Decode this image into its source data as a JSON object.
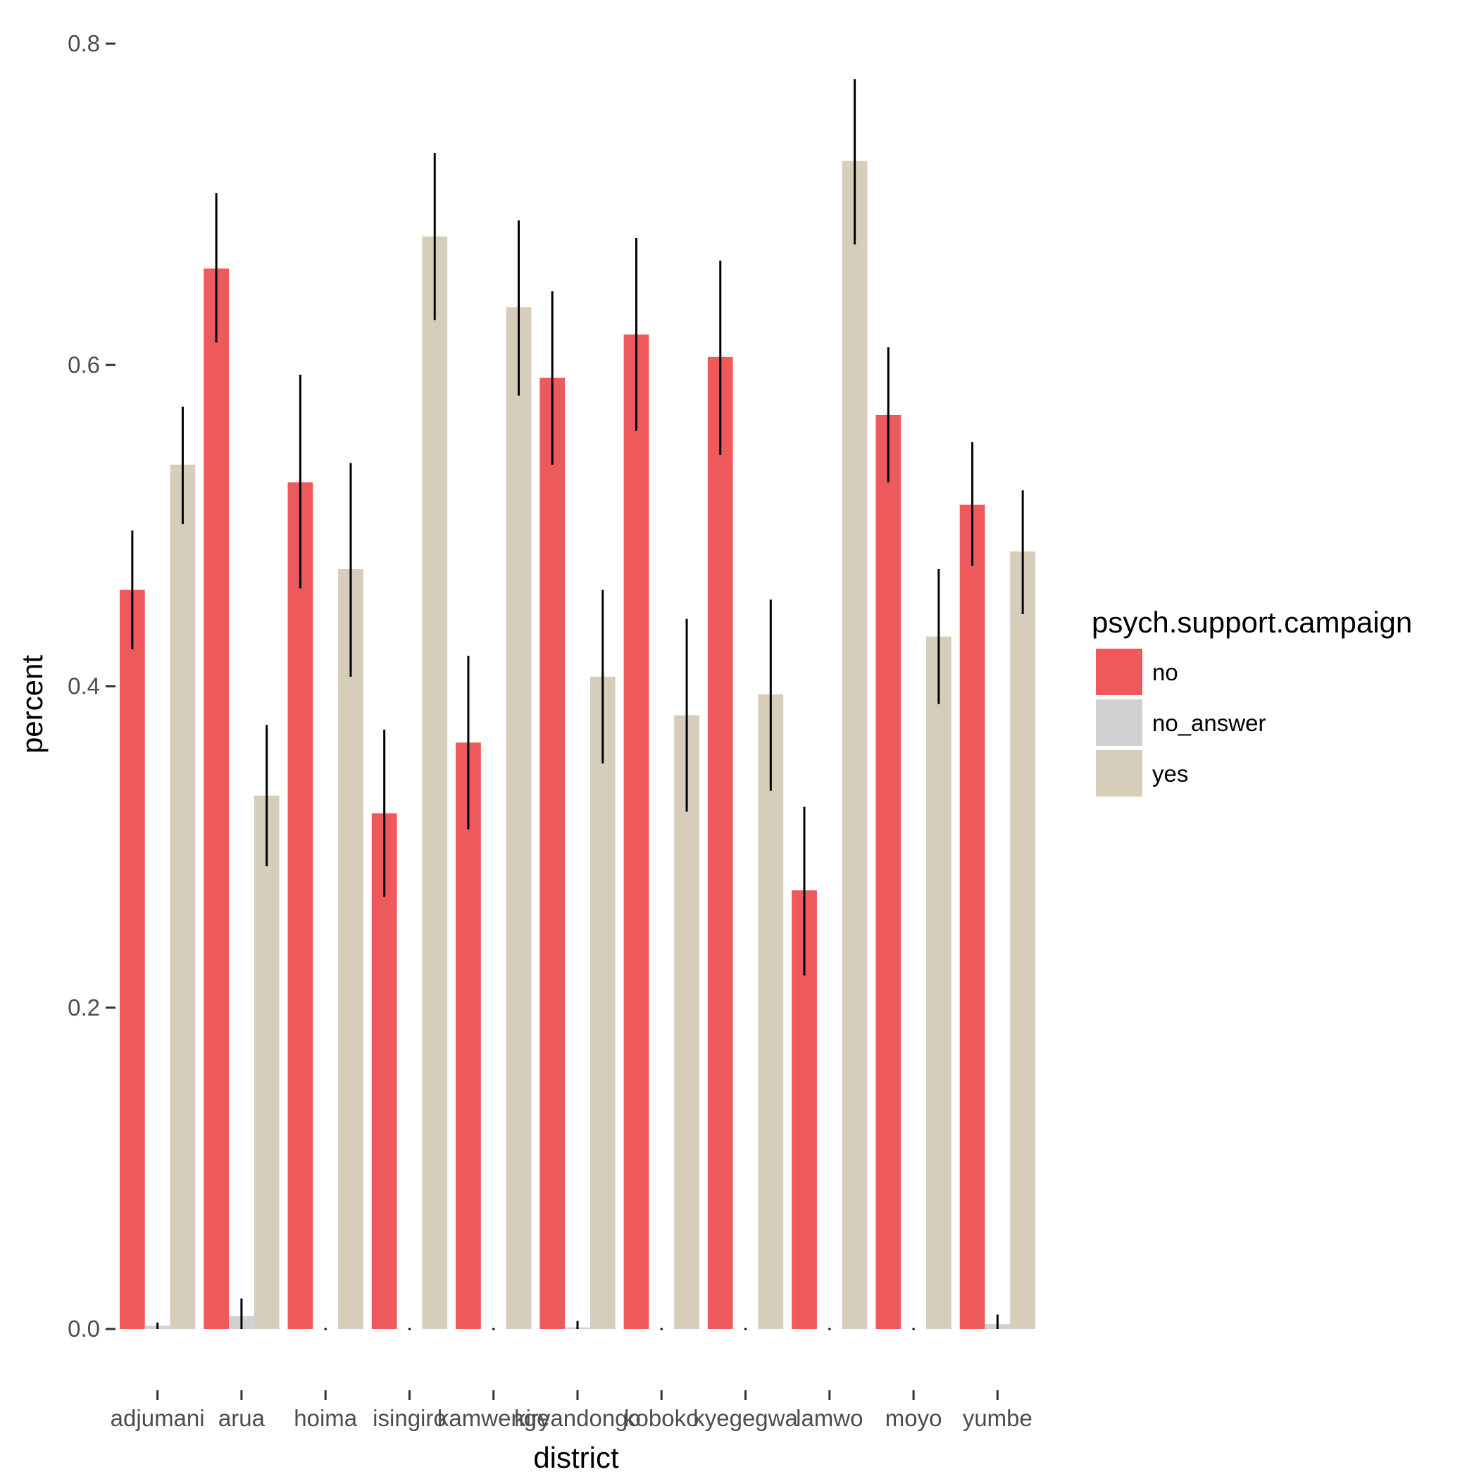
{
  "chart_data": {
    "type": "bar",
    "xlabel": "district",
    "ylabel": "percent",
    "ylim": [
      0,
      0.8
    ],
    "y_ticks": [
      "0.0",
      "0.2",
      "0.4",
      "0.6",
      "0.8"
    ],
    "grid": false,
    "legend_position": "right",
    "categories": [
      "adjumani",
      "arua",
      "hoima",
      "isingiro",
      "kamwenge",
      "kiryandongo",
      "koboko",
      "kyegegwa",
      "lamwo",
      "moyo",
      "yumbe"
    ],
    "legend": {
      "title": "psych.support.campaign"
    },
    "series": [
      {
        "name": "no",
        "color": "#EE5A5C",
        "values": [
          0.46,
          0.66,
          0.527,
          0.321,
          0.365,
          0.592,
          0.619,
          0.605,
          0.273,
          0.569,
          0.513
        ],
        "error_low": [
          0.423,
          0.614,
          0.461,
          0.269,
          0.311,
          0.538,
          0.559,
          0.544,
          0.22,
          0.527,
          0.475
        ],
        "error_high": [
          0.497,
          0.707,
          0.594,
          0.373,
          0.419,
          0.646,
          0.679,
          0.665,
          0.325,
          0.611,
          0.552
        ]
      },
      {
        "name": "no_answer",
        "color": "#D1D1D1",
        "values": [
          0.002,
          0.008,
          0.0,
          0.0,
          0.0,
          0.001,
          0.0,
          0.0,
          0.0,
          0.0,
          0.003
        ],
        "error_low": [
          0.0,
          0.0,
          0.0,
          0.0,
          0.0,
          0.0,
          0.0,
          0.0,
          0.0,
          0.0,
          0.0
        ],
        "error_high": [
          0.004,
          0.019,
          0.0,
          0.0,
          0.0,
          0.005,
          0.0,
          0.0,
          0.0,
          0.0,
          0.009
        ]
      },
      {
        "name": "yes",
        "color": "#D6CEBB",
        "values": [
          0.538,
          0.332,
          0.473,
          0.68,
          0.636,
          0.406,
          0.382,
          0.395,
          0.727,
          0.431,
          0.484
        ],
        "error_low": [
          0.501,
          0.288,
          0.406,
          0.628,
          0.581,
          0.352,
          0.322,
          0.335,
          0.675,
          0.389,
          0.445
        ],
        "error_high": [
          0.574,
          0.376,
          0.539,
          0.732,
          0.69,
          0.46,
          0.442,
          0.454,
          0.778,
          0.473,
          0.522
        ]
      }
    ]
  }
}
